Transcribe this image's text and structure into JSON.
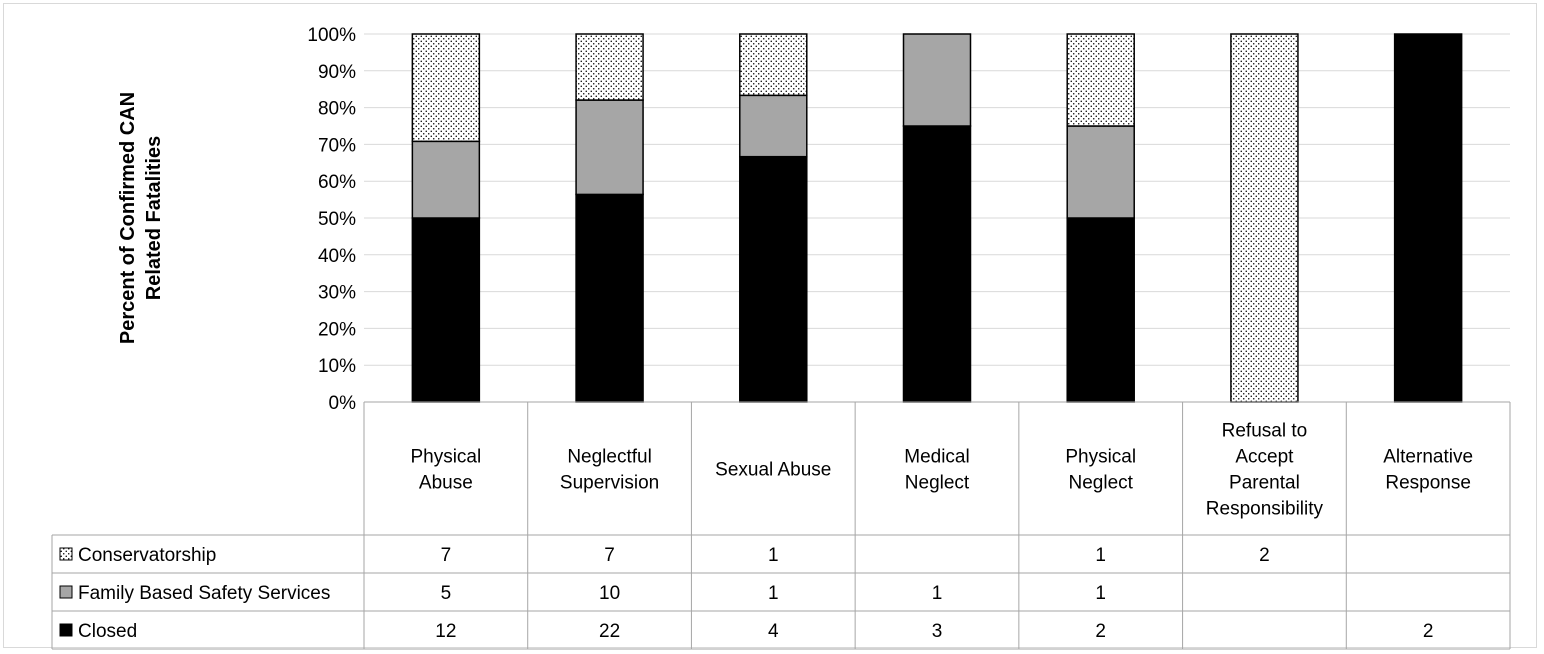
{
  "chart_data": {
    "type": "bar",
    "stacked": true,
    "normalized": true,
    "ylabel": "Percent of Confirmed CAN Related Fatalities",
    "ylim": [
      0,
      100
    ],
    "yticks": [
      "0%",
      "10%",
      "20%",
      "30%",
      "40%",
      "50%",
      "60%",
      "70%",
      "80%",
      "90%",
      "100%"
    ],
    "grid": true,
    "categories": [
      [
        "Physical",
        "Abuse"
      ],
      [
        "Neglectful",
        "Supervision"
      ],
      [
        "Sexual Abuse"
      ],
      [
        "Medical",
        "Neglect"
      ],
      [
        "Physical",
        "Neglect"
      ],
      [
        "Refusal to",
        "Accept",
        "Parental",
        "Responsibility"
      ],
      [
        "Alternative",
        "Response"
      ]
    ],
    "series": [
      {
        "name": "Conservatorship",
        "values": [
          7,
          7,
          1,
          null,
          1,
          2,
          null
        ],
        "fill": "dots"
      },
      {
        "name": "Family Based Safety Services",
        "values": [
          5,
          10,
          1,
          1,
          1,
          null,
          null
        ],
        "fill": "#a6a6a6"
      },
      {
        "name": "Closed",
        "values": [
          12,
          22,
          4,
          3,
          2,
          null,
          2
        ],
        "fill": "#000000"
      }
    ],
    "legend": "data-table",
    "colors": {
      "grid": "#d9d9d9",
      "frame": "#d9d9d9",
      "table_border": "#a6a6a6",
      "text": "#000000"
    }
  }
}
